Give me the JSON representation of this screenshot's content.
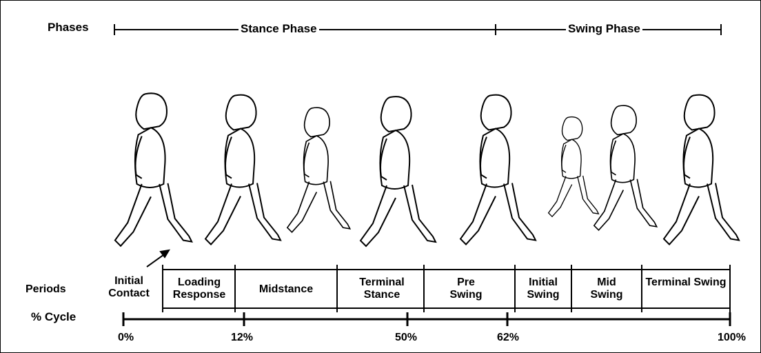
{
  "phases": {
    "label": "Phases",
    "items": [
      "Stance Phase",
      "Swing Phase"
    ]
  },
  "periods": {
    "label": "Periods",
    "items": [
      "Initial Contact",
      "Loading Response",
      "Midstance",
      "Terminal Stance",
      "Pre Swing",
      "Initial Swing",
      "Mid Swing",
      "Terminal Swing"
    ]
  },
  "cycle": {
    "label": "% Cycle",
    "ticks": [
      "0%",
      "12%",
      "50%",
      "62%",
      "100%"
    ]
  }
}
